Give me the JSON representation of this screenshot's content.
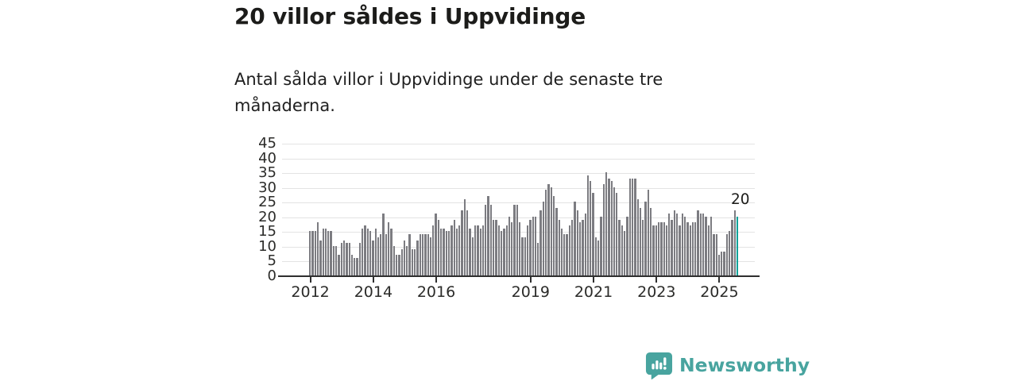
{
  "header": {
    "title": "20 villor såldes i Uppvidinge",
    "subtitle": "Antal sålda villor i Uppvidinge under de senaste tre månaderna."
  },
  "chart_data": {
    "type": "bar",
    "title": "20 villor såldes i Uppvidinge",
    "subtitle": "Antal sålda villor i Uppvidinge under de senaste tre månaderna.",
    "x_interval": "monthly",
    "x_start": "2012-01",
    "x_end": "2025-08",
    "x_tick_labels": [
      "2012",
      "2014",
      "2016",
      "2019",
      "2021",
      "2023",
      "2025"
    ],
    "x_axis_start_year": 2012,
    "y_ticks": [
      0,
      5,
      10,
      15,
      20,
      25,
      30,
      35,
      40,
      45
    ],
    "ylim": [
      0,
      45
    ],
    "grid": "horizontal",
    "legend": "none",
    "values": [
      15,
      15,
      15,
      18,
      12,
      16,
      16,
      15,
      15,
      10,
      10,
      7,
      11,
      12,
      11,
      11,
      7,
      6,
      6,
      11,
      16,
      17,
      16,
      15,
      12,
      16,
      13,
      14,
      21,
      14,
      18,
      16,
      10,
      7,
      7,
      9,
      12,
      10,
      14,
      9,
      9,
      12,
      14,
      14,
      14,
      14,
      13,
      17,
      21,
      19,
      16,
      16,
      15,
      15,
      17,
      19,
      16,
      17,
      22,
      26,
      22,
      16,
      13,
      17,
      17,
      16,
      17,
      24,
      27,
      24,
      19,
      19,
      17,
      15,
      16,
      17,
      20,
      18,
      24,
      24,
      18,
      13,
      13,
      17,
      19,
      20,
      20,
      11,
      22,
      25,
      29,
      31,
      30,
      27,
      23,
      19,
      16,
      14,
      14,
      17,
      19,
      25,
      22,
      18,
      19,
      21,
      34,
      32,
      28,
      13,
      12,
      20,
      31,
      35,
      33,
      32,
      30,
      28,
      19,
      17,
      15,
      20,
      33,
      33,
      33,
      26,
      23,
      19,
      25,
      29,
      23,
      17,
      17,
      18,
      18,
      18,
      17,
      21,
      19,
      22,
      21,
      17,
      21,
      20,
      18,
      17,
      18,
      18,
      22,
      21,
      21,
      20,
      17,
      20,
      14,
      14,
      7,
      8,
      8,
      14,
      15,
      19,
      22,
      20
    ],
    "last_bar": {
      "value": 20,
      "label": "20",
      "highlighted": true
    },
    "colors": {
      "bar": "#7c7c81",
      "highlight": "#00a39a",
      "gridline": "#e3e3e3",
      "axis": "#2f2f2f",
      "axis_text": "#2b2b29"
    }
  },
  "footer": {
    "brand_name": "Newsworthy",
    "brand_color": "#48a49f",
    "logo_icon": "speech-bubble-bar-chart"
  }
}
